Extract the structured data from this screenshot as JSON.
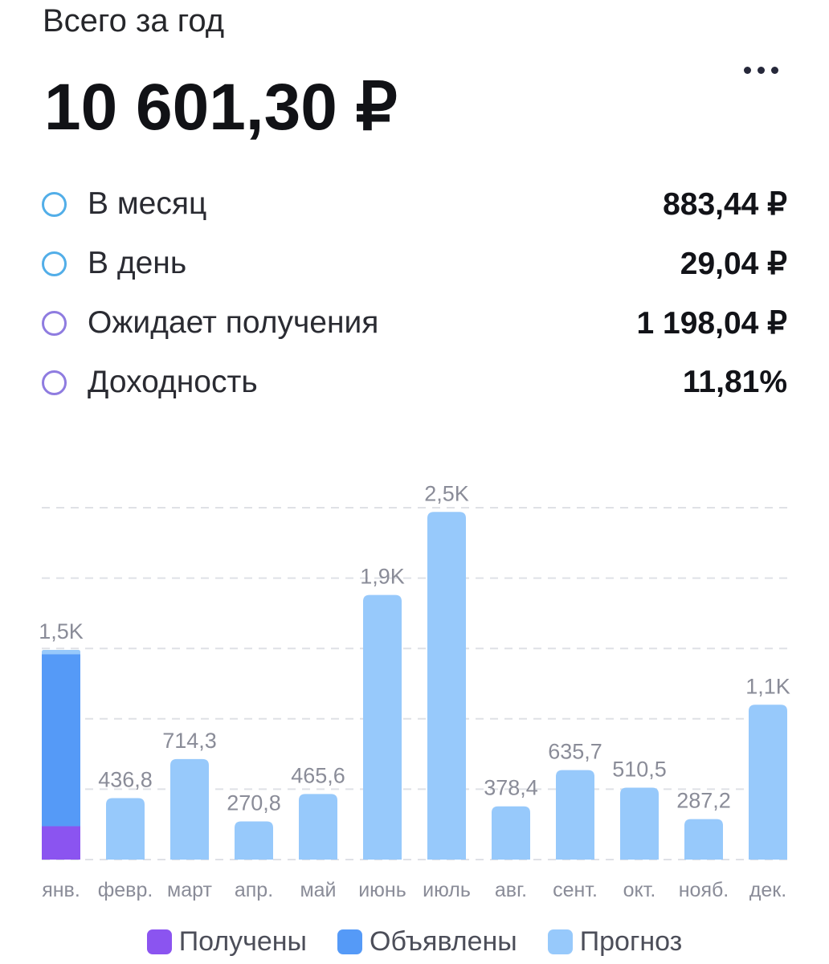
{
  "header": {
    "subtitle": "Всего за год",
    "total": "10 601,30 ₽"
  },
  "stats": [
    {
      "label": "В месяц",
      "value": "883,44 ₽",
      "dot_color": "#52aee8"
    },
    {
      "label": "В день",
      "value": "29,04 ₽",
      "dot_color": "#52aee8"
    },
    {
      "label": "Ожидает получения",
      "value": "1 198,04 ₽",
      "dot_color": "#8f7ce0"
    },
    {
      "label": "Доходность",
      "value": "11,81%",
      "dot_color": "#8f7ce0"
    }
  ],
  "legend": [
    {
      "label": "Получены",
      "color": "#8b54f0"
    },
    {
      "label": "Объявлены",
      "color": "#559af7"
    },
    {
      "label": "Прогноз",
      "color": "#97c9fb"
    }
  ],
  "chart_data": {
    "type": "bar",
    "stacked": true,
    "categories": [
      "янв.",
      "февр.",
      "март",
      "апр.",
      "май",
      "июнь",
      "июль",
      "авг.",
      "сент.",
      "окт.",
      "нояб.",
      "дек."
    ],
    "value_labels": [
      "1,5K",
      "436,8",
      "714,3",
      "270,8",
      "465,6",
      "1,9K",
      "2,5K",
      "378,4",
      "635,7",
      "510,5",
      "287,2",
      "1,1K"
    ],
    "series": [
      {
        "name": "Получены",
        "color": "#8b54f0",
        "values": [
          237,
          0,
          0,
          0,
          0,
          0,
          0,
          0,
          0,
          0,
          0,
          0
        ]
      },
      {
        "name": "Объявлены",
        "color": "#559af7",
        "values": [
          1223,
          0,
          0,
          0,
          0,
          0,
          0,
          0,
          0,
          0,
          0,
          0
        ]
      },
      {
        "name": "Прогноз",
        "color": "#97c9fb",
        "values": [
          30,
          436.8,
          714.3,
          270.8,
          465.6,
          1880,
          2470,
          378.4,
          635.7,
          510.5,
          287.2,
          1100
        ]
      }
    ],
    "ylim": [
      0,
      2500
    ],
    "grid": true
  }
}
